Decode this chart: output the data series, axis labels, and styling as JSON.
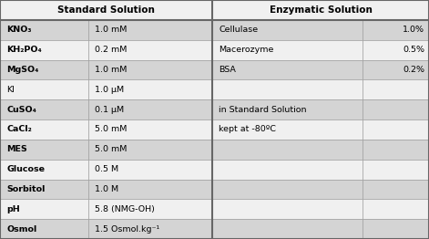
{
  "title_left": "Standard Solution",
  "title_right": "Enzymatic Solution",
  "std_rows": [
    [
      "KNO₃",
      "1.0 mM"
    ],
    [
      "KH₂PO₄",
      "0.2 mM"
    ],
    [
      "MgSO₄",
      "1.0 mM"
    ],
    [
      "KI",
      "1.0 μM"
    ],
    [
      "CuSO₄",
      "0.1 μM"
    ],
    [
      "CaCl₂",
      "5.0 mM"
    ],
    [
      "MES",
      "5.0 mM"
    ],
    [
      "Glucose",
      "0.5 M"
    ],
    [
      "Sorbitol",
      "1.0 M"
    ],
    [
      "pH",
      "5.8 (NMG-OH)"
    ],
    [
      "Osmol",
      "1.5 Osmol.kg⁻¹"
    ]
  ],
  "std_bold": [
    true,
    true,
    true,
    false,
    true,
    true,
    true,
    true,
    true,
    true,
    true
  ],
  "enz_rows": [
    [
      "Cellulase",
      "1.0%"
    ],
    [
      "Macerozyme",
      "0.5%"
    ],
    [
      "BSA",
      "0.2%"
    ],
    [
      "",
      ""
    ],
    [
      "in Standard Solution",
      ""
    ],
    [
      "kept at -80ºC",
      ""
    ],
    [
      "",
      ""
    ],
    [
      "",
      ""
    ],
    [
      "",
      ""
    ],
    [
      "",
      ""
    ],
    [
      "",
      ""
    ]
  ],
  "col_bg_light": "#d4d4d4",
  "col_bg_white": "#f0f0f0",
  "fig_bg": "#c8c8c8",
  "border_color": "#999999",
  "strong_border": "#888888",
  "text_color": "#000000",
  "figsize": [
    4.71,
    2.62
  ],
  "dpi": 100,
  "c0": 0.0,
  "c1": 0.205,
  "c2": 0.495,
  "c3": 0.845,
  "c4": 1.0
}
